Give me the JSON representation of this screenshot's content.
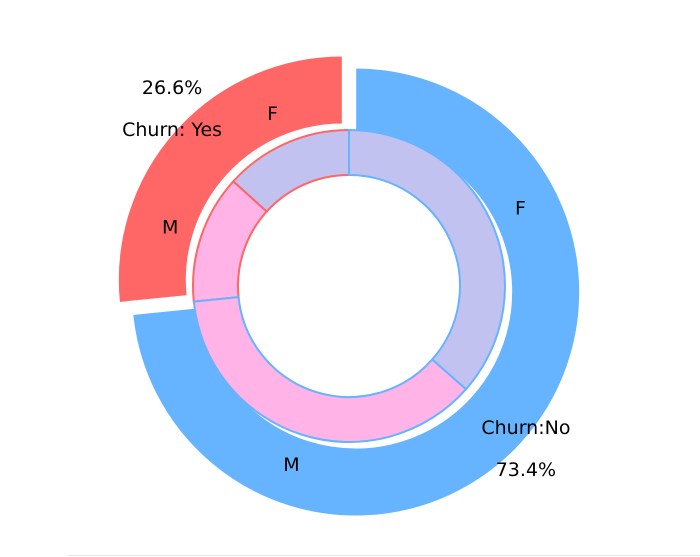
{
  "chart_data": {
    "type": "pie",
    "subtype": "nested-donut",
    "title": "",
    "outer": {
      "slices": [
        {
          "label": "Churn: Yes",
          "value": 26.6,
          "pct_label": "26.6%",
          "color": "#ff6666"
        },
        {
          "label": "Churn:No",
          "value": 73.4,
          "pct_label": "73.4%",
          "color": "#66b3ff"
        }
      ]
    },
    "inner": {
      "slices": [
        {
          "group": "Churn: Yes",
          "label": "F",
          "value": 13.3,
          "color": "#c2c2f0"
        },
        {
          "group": "Churn: Yes",
          "label": "M",
          "value": 13.3,
          "color": "#ffb3e6"
        },
        {
          "group": "Churn:No",
          "label": "M",
          "value": 36.9,
          "color": "#ffb3e6"
        },
        {
          "group": "Churn:No",
          "label": "F",
          "value": 36.5,
          "color": "#c2c2f0"
        }
      ]
    },
    "start_angle_deg": 90,
    "direction": "counterclockwise",
    "wedge_edge_colors": {
      "outer": "#ffffff",
      "inner": {
        "Churn: Yes": "#ff6666",
        "Churn:No": "#66b3ff"
      }
    }
  }
}
